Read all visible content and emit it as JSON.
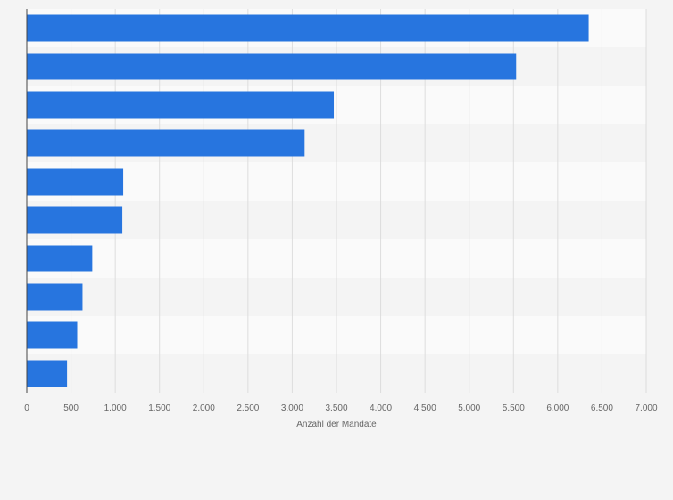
{
  "chart_data": {
    "type": "bar",
    "orientation": "horizontal",
    "categories": [
      "",
      "",
      "",
      "",
      "",
      "",
      "",
      "",
      "",
      ""
    ],
    "values": [
      6350,
      5530,
      3470,
      3140,
      1090,
      1080,
      740,
      630,
      570,
      455
    ],
    "xlabel": "Anzahl der Mandate",
    "xlim": [
      0,
      7000
    ],
    "xticks": [
      0,
      500,
      1000,
      1500,
      2000,
      2500,
      3000,
      3500,
      4000,
      4500,
      5000,
      5500,
      6000,
      6500,
      7000
    ],
    "xtick_labels": [
      "0",
      "500",
      "1.000",
      "1.500",
      "2.000",
      "2.500",
      "3.000",
      "3.500",
      "4.000",
      "4.500",
      "5.000",
      "5.500",
      "6.000",
      "6.500",
      "7.000"
    ],
    "grid": true,
    "legend": "none"
  },
  "colors": {
    "bar": "#2775df",
    "band_light": "#fafafa",
    "band_dark": "#f4f4f4",
    "grid": "#dddddd",
    "axis": "#444444",
    "label": "#666666"
  }
}
